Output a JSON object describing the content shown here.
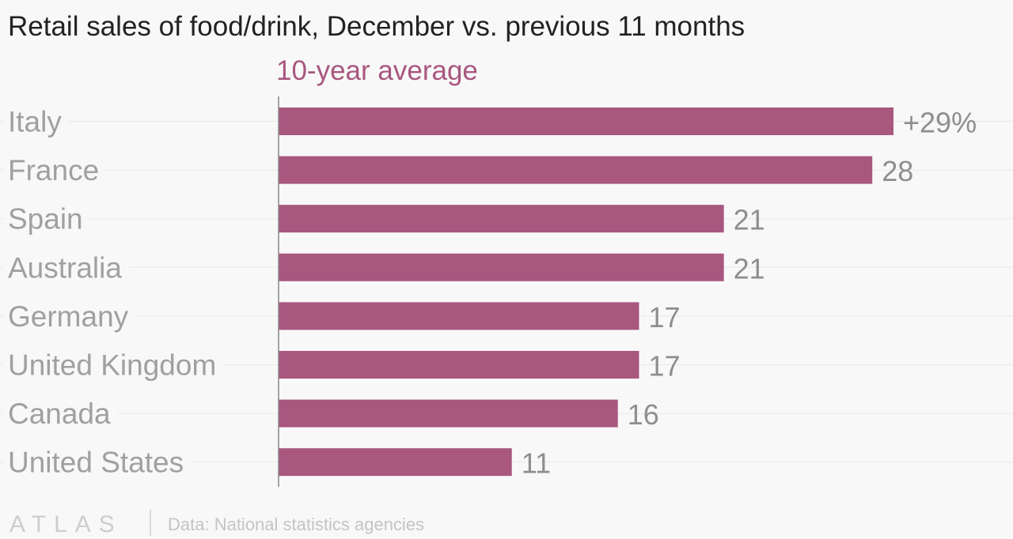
{
  "chart_data": {
    "type": "bar",
    "orientation": "horizontal",
    "title": "Retail sales of food/drink, December vs. previous 11 months",
    "subtitle": "10-year average",
    "categories": [
      "Italy",
      "France",
      "Spain",
      "Australia",
      "Germany",
      "United Kingdom",
      "Canada",
      "United States"
    ],
    "values": [
      29,
      28,
      21,
      21,
      17,
      17,
      16,
      11
    ],
    "value_labels": [
      "+29%",
      "28",
      "21",
      "21",
      "17",
      "17",
      "16",
      "11"
    ],
    "xlim": [
      0,
      29
    ],
    "grid": true,
    "bar_color": "#a8577f"
  },
  "footer": {
    "logo": "ATLAS",
    "source": "Data: National statistics agencies"
  }
}
